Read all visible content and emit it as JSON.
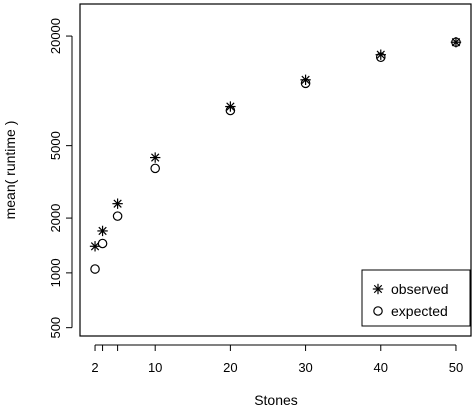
{
  "chart_data": {
    "type": "scatter",
    "title": "",
    "xlabel": "Stones",
    "ylabel": "mean( runtime )",
    "xlim": [
      0,
      52
    ],
    "ylim": [
      450,
      30000
    ],
    "y_scale": "log",
    "x_ticks": [
      2,
      3,
      5,
      10,
      20,
      30,
      40,
      50
    ],
    "x_tick_labels": [
      "2",
      "",
      "",
      "10",
      "20",
      "30",
      "40",
      "50"
    ],
    "y_ticks": [
      500,
      1000,
      2000,
      5000,
      20000
    ],
    "y_tick_labels": [
      "500",
      "1000",
      "2000",
      "5000",
      "20000"
    ],
    "grid": false,
    "legend_position": "bottom-right",
    "series": [
      {
        "name": "observed",
        "marker": "asterisk",
        "x": [
          2,
          3,
          5,
          10,
          20,
          30,
          40,
          50
        ],
        "y": [
          1400,
          1700,
          2400,
          4300,
          8200,
          11500,
          15800,
          18500
        ]
      },
      {
        "name": "expected",
        "marker": "circle",
        "x": [
          2,
          3,
          5,
          10,
          20,
          30,
          40,
          50
        ],
        "y": [
          1050,
          1450,
          2050,
          3750,
          7800,
          11000,
          15300,
          18500
        ]
      }
    ]
  }
}
